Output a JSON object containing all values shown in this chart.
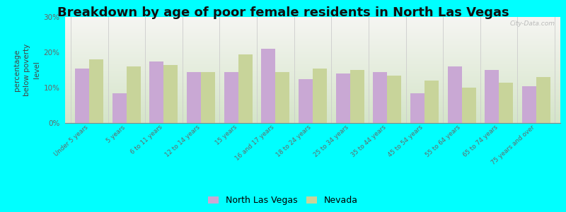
{
  "title": "Breakdown by age of poor female residents in North Las Vegas",
  "categories": [
    "Under 5 years",
    "5 years",
    "6 to 11 years",
    "12 to 14 years",
    "15 years",
    "16 and 17 years",
    "18 to 24 years",
    "25 to 34 years",
    "35 to 44 years",
    "45 to 54 years",
    "55 to 64 years",
    "65 to 74 years",
    "75 years and over"
  ],
  "nlv_values": [
    15.5,
    8.5,
    17.5,
    14.5,
    14.5,
    21.0,
    12.5,
    14.0,
    14.5,
    8.5,
    16.0,
    15.0,
    10.5
  ],
  "nv_values": [
    18.0,
    16.0,
    16.5,
    14.5,
    19.5,
    14.5,
    15.5,
    15.0,
    13.5,
    12.0,
    10.0,
    11.5,
    13.0
  ],
  "nlv_color": "#c9a8d4",
  "nv_color": "#c8d49a",
  "ylabel": "percentage\nbelow poverty\nlevel",
  "ylim": [
    0,
    30
  ],
  "yticks": [
    0,
    10,
    20,
    30
  ],
  "ytick_labels": [
    "0%",
    "10%",
    "20%",
    "30%"
  ],
  "outer_bg": "#00ffff",
  "title_fontsize": 13,
  "tick_fontsize": 7.5,
  "legend_fontsize": 9,
  "watermark": "City-Data.com"
}
